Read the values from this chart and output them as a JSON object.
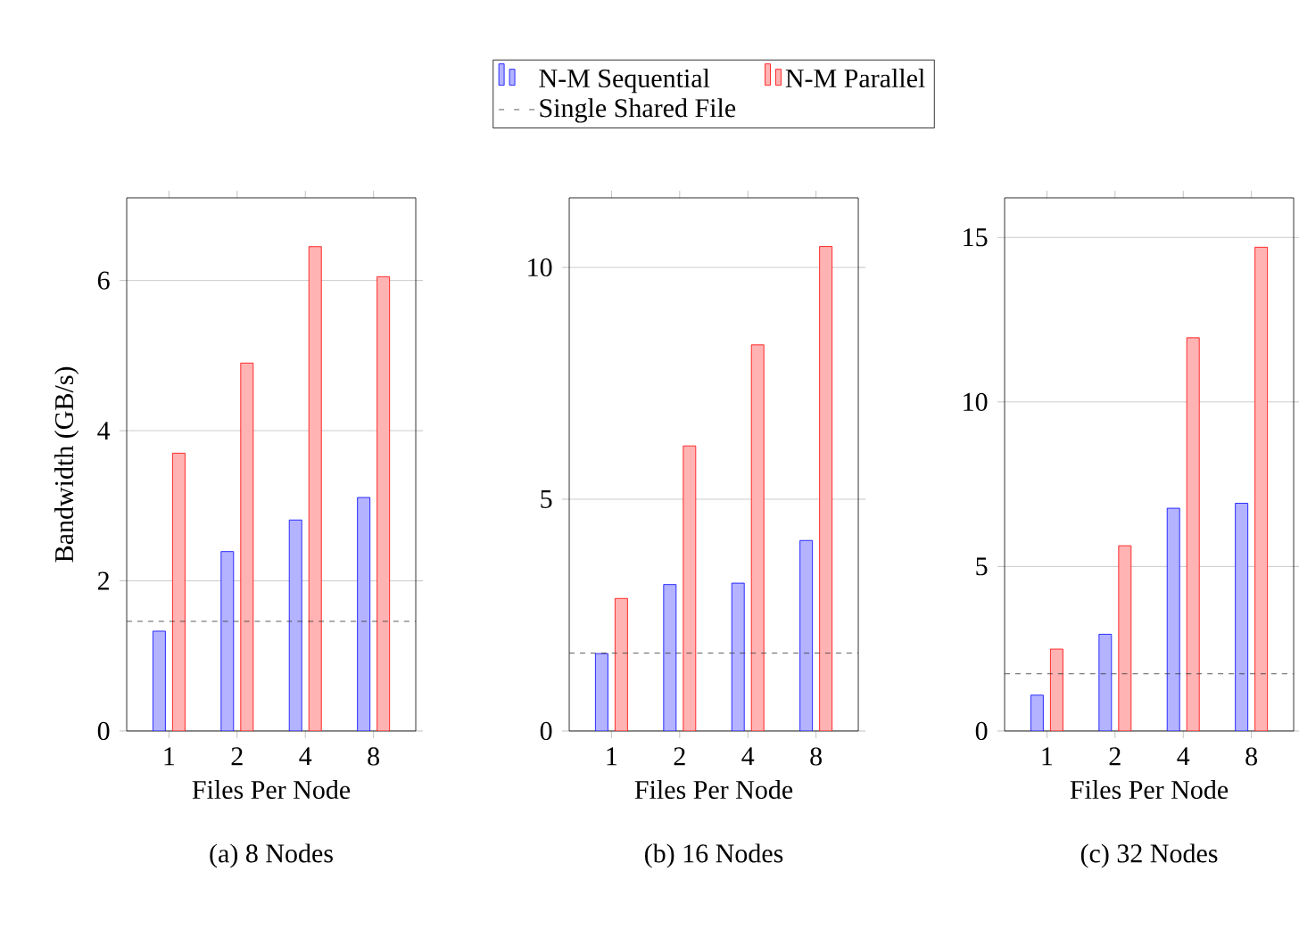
{
  "chart_data": [
    {
      "type": "bar",
      "title": "(a) 8 Nodes",
      "xlabel": "Files Per Node",
      "ylabel": "Bandwidth (GB/s)",
      "categories": [
        "1",
        "2",
        "4",
        "8"
      ],
      "series": [
        {
          "color": "#b3b3ff",
          "values": [
            1.33,
            2.39,
            2.81,
            3.11
          ]
        },
        {
          "color": "#ffb3b3",
          "values": [
            3.7,
            4.9,
            6.45,
            6.05
          ]
        }
      ],
      "ylim": [
        0,
        7.1
      ],
      "yticks": [
        0,
        2,
        4,
        6
      ],
      "grid": "y",
      "ref_lines": [
        {
          "axis": "y",
          "value": 1.46,
          "line_style": "dashed",
          "color": "#333333"
        }
      ]
    },
    {
      "type": "bar",
      "title": "(b) 16 Nodes",
      "xlabel": "Files Per Node",
      "categories": [
        "1",
        "2",
        "4",
        "8"
      ],
      "series": [
        {
          "name": "N-M Sequential",
          "color": "#b3b3ff",
          "values": [
            1.67,
            3.16,
            3.19,
            4.11
          ]
        },
        {
          "name": "N-M Parallel",
          "color": "#ffb3b3",
          "values": [
            2.86,
            6.15,
            8.33,
            10.45
          ]
        }
      ],
      "ylim": [
        0,
        11.5
      ],
      "yticks": [
        0,
        5,
        10
      ],
      "grid": "y",
      "legend": "top",
      "ref_lines": [
        {
          "axis": "y",
          "value": 1.68,
          "label": "Single Shared File",
          "line_style": "dashed",
          "color": "#333333"
        }
      ]
    },
    {
      "type": "bar",
      "title": "(c) 32 Nodes",
      "xlabel": "Files Per Node",
      "categories": [
        "1",
        "2",
        "4",
        "8"
      ],
      "series": [
        {
          "color": "#b3b3ff",
          "values": [
            1.09,
            2.94,
            6.77,
            6.92
          ]
        },
        {
          "color": "#ffb3b3",
          "values": [
            2.49,
            5.63,
            11.95,
            14.7
          ]
        }
      ],
      "ylim": [
        0,
        16.2
      ],
      "yticks": [
        0,
        5,
        10,
        15
      ],
      "grid": "y",
      "ref_lines": [
        {
          "axis": "y",
          "value": 1.74,
          "line_style": "dashed",
          "color": "#333333"
        }
      ]
    }
  ]
}
